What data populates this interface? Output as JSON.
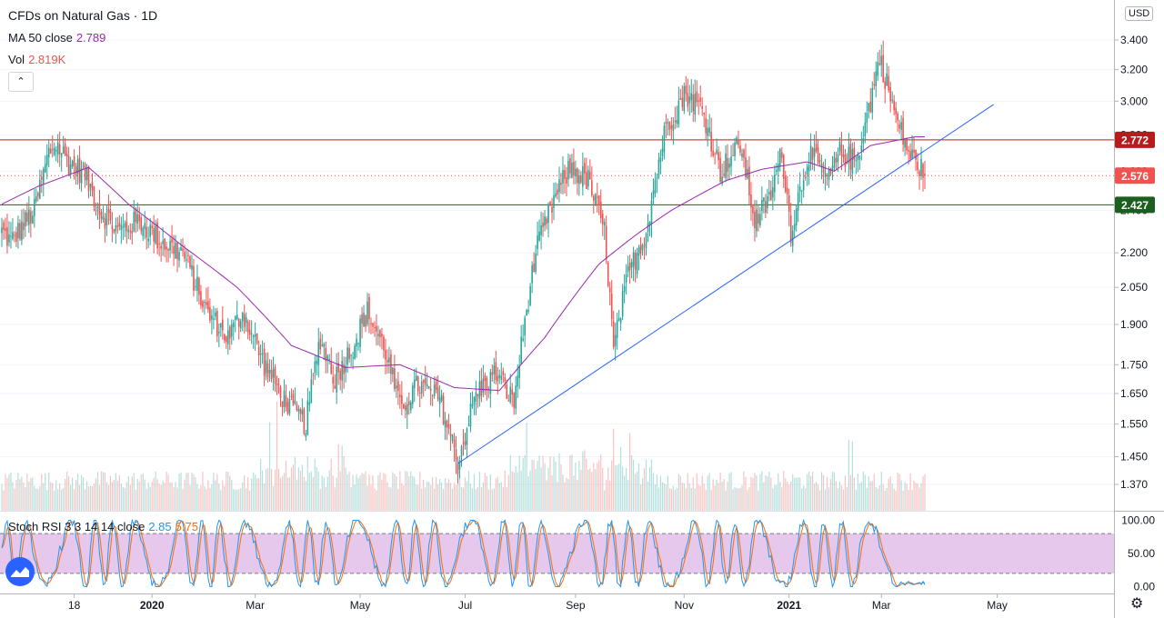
{
  "legend": {
    "title": "CFDs on Natural Gas · 1D",
    "ma_label": "MA 50 close",
    "ma_value": "2.789",
    "vol_label": "Vol",
    "vol_value": "2.819K",
    "stoch_label": "Stoch RSI 3 3 14 14 close",
    "stoch_k_value": "2.85",
    "stoch_d_value": "5.75"
  },
  "collapse_icon": "chevron-up-icon",
  "currency": "USD",
  "colors": {
    "up": "#26a69a",
    "down": "#ef5350",
    "ma": "#9c27b0",
    "trendline": "#2962ff",
    "resistance": "#b71c1c",
    "support": "#1b5e20",
    "stoch_k": "#2196f3",
    "stoch_d": "#ff6d00",
    "stoch_band": "#e1bee7"
  },
  "chart_data": {
    "type": "candlestick",
    "symbol": "CFDs on Natural Gas",
    "interval": "1D",
    "x_ticks": [
      "18",
      "2020",
      "Mar",
      "May",
      "Jul",
      "Sep",
      "Nov",
      "2021",
      "Mar",
      "May"
    ],
    "y_ticks": [
      1.37,
      1.45,
      1.55,
      1.65,
      1.75,
      1.9,
      2.05,
      2.2,
      2.4,
      2.6,
      2.8,
      3.0,
      3.2,
      3.4
    ],
    "y_range": [
      1.31,
      3.6
    ],
    "y_scale": "log",
    "price_anchors": [
      [
        0,
        2.3
      ],
      [
        5,
        2.25
      ],
      [
        18,
        2.4
      ],
      [
        26,
        2.7
      ],
      [
        30,
        2.75
      ],
      [
        37,
        2.65
      ],
      [
        46,
        2.58
      ],
      [
        54,
        2.4
      ],
      [
        64,
        2.3
      ],
      [
        76,
        2.35
      ],
      [
        88,
        2.25
      ],
      [
        100,
        2.2
      ],
      [
        113,
        1.95
      ],
      [
        125,
        1.85
      ],
      [
        133,
        1.95
      ],
      [
        145,
        1.75
      ],
      [
        157,
        1.62
      ],
      [
        168,
        1.55
      ],
      [
        176,
        1.85
      ],
      [
        184,
        1.7
      ],
      [
        194,
        1.82
      ],
      [
        202,
        1.95
      ],
      [
        212,
        1.8
      ],
      [
        220,
        1.6
      ],
      [
        230,
        1.68
      ],
      [
        242,
        1.63
      ],
      [
        252,
        1.43
      ],
      [
        262,
        1.65
      ],
      [
        273,
        1.72
      ],
      [
        283,
        1.62
      ],
      [
        295,
        2.2
      ],
      [
        305,
        2.45
      ],
      [
        314,
        2.62
      ],
      [
        324,
        2.55
      ],
      [
        333,
        2.3
      ],
      [
        338,
        1.8
      ],
      [
        346,
        2.1
      ],
      [
        356,
        2.3
      ],
      [
        367,
        2.85
      ],
      [
        378,
        3.05
      ],
      [
        387,
        2.95
      ],
      [
        397,
        2.6
      ],
      [
        408,
        2.75
      ],
      [
        416,
        2.35
      ],
      [
        424,
        2.45
      ],
      [
        431,
        2.7
      ],
      [
        436,
        2.3
      ],
      [
        446,
        2.7
      ],
      [
        457,
        2.55
      ],
      [
        463,
        2.7
      ],
      [
        472,
        2.65
      ],
      [
        480,
        3.0
      ],
      [
        485,
        3.28
      ],
      [
        494,
        2.9
      ],
      [
        501,
        2.7
      ],
      [
        509,
        2.6
      ],
      [
        510,
        2.576
      ]
    ],
    "ma50_close": [
      [
        0,
        2.43
      ],
      [
        20,
        2.52
      ],
      [
        48,
        2.62
      ],
      [
        70,
        2.43
      ],
      [
        100,
        2.23
      ],
      [
        130,
        2.05
      ],
      [
        160,
        1.82
      ],
      [
        190,
        1.74
      ],
      [
        220,
        1.75
      ],
      [
        250,
        1.67
      ],
      [
        275,
        1.66
      ],
      [
        300,
        1.85
      ],
      [
        330,
        2.15
      ],
      [
        350,
        2.28
      ],
      [
        370,
        2.4
      ],
      [
        400,
        2.55
      ],
      [
        420,
        2.61
      ],
      [
        445,
        2.65
      ],
      [
        460,
        2.6
      ],
      [
        480,
        2.74
      ],
      [
        505,
        2.79
      ],
      [
        510,
        2.789
      ]
    ],
    "horizontal_lines": [
      {
        "price": 2.772,
        "label": "2.772",
        "color": "#b71c1c"
      },
      {
        "price": 2.427,
        "label": "2.427",
        "color": "#1b5e20"
      }
    ],
    "last_price": {
      "price": 2.576,
      "label": "2.576"
    },
    "trendline": [
      [
        252,
        1.43
      ],
      [
        548,
        2.98
      ]
    ],
    "volume": {
      "last": "2.819K",
      "spike_indices": [
        148,
        152,
        186,
        188,
        290,
        338,
        342,
        347,
        468,
        470
      ]
    },
    "stoch_rsi": {
      "k": 2.85,
      "d": 5.75,
      "upper_band": 80,
      "lower_band": 20,
      "ticks": [
        100.0,
        50.0,
        0.0
      ]
    }
  }
}
